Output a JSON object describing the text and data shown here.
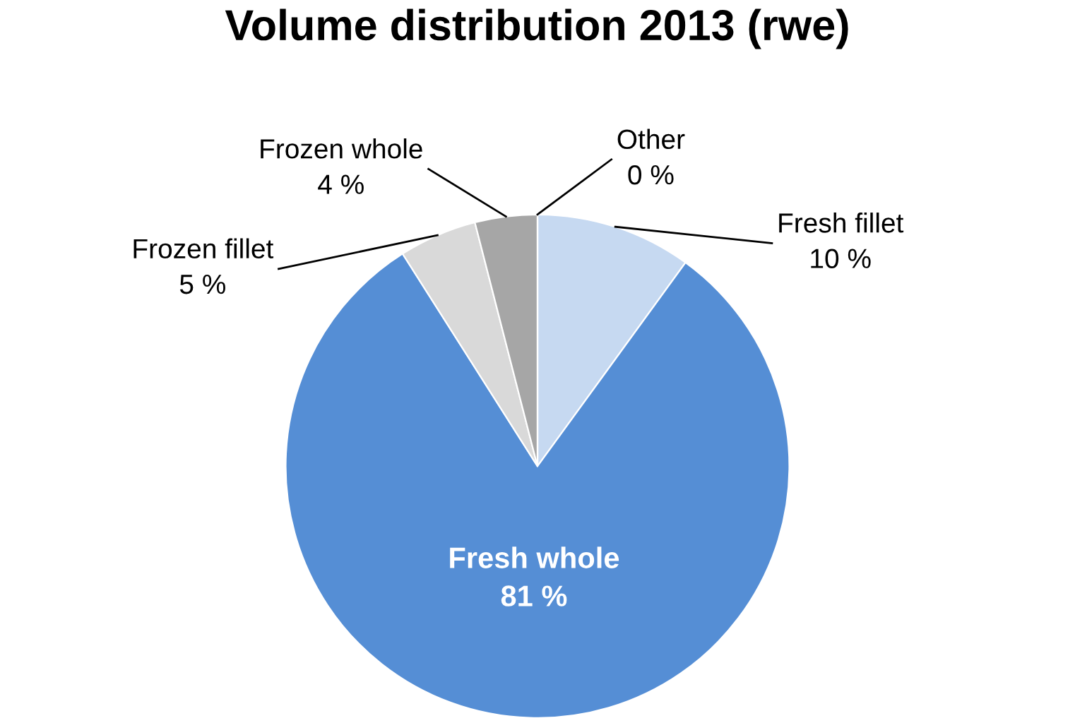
{
  "chart_data": {
    "type": "pie",
    "title": "Volume distribution 2013 (rwe)",
    "categories": [
      "Fresh fillet",
      "Fresh whole",
      "Frozen fillet",
      "Frozen whole",
      "Other"
    ],
    "values": [
      10,
      81,
      5,
      4,
      0
    ],
    "value_labels": [
      "10 %",
      "81 %",
      "5 %",
      "4 %",
      "0 %"
    ],
    "colors": [
      "#c6d9f1",
      "#558ed5",
      "#d9d9d9",
      "#a6a6a6",
      "#404040"
    ]
  }
}
